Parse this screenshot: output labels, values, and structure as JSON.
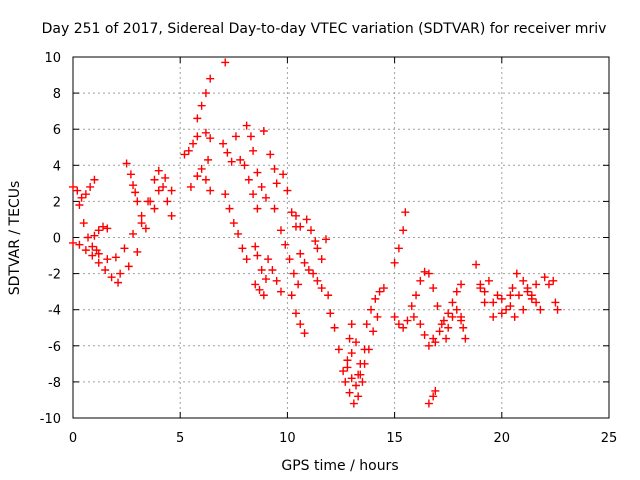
{
  "chart_data": {
    "type": "scatter",
    "title": "Day 251 of 2017, Sidereal Day-to-day VTEC variation (SDTVAR) for receiver mriv",
    "xlabel": "GPS time / hours",
    "ylabel": "SDTVAR / TECUs",
    "xlim": [
      0,
      25
    ],
    "ylim": [
      -10,
      10
    ],
    "xticks": [
      0,
      5,
      10,
      15,
      20,
      25
    ],
    "yticks": [
      -10,
      -8,
      -6,
      -4,
      -2,
      0,
      2,
      4,
      6,
      8,
      10
    ],
    "grid": true,
    "marker": "+",
    "series": [
      {
        "name": "SDTVAR",
        "color": "#ff0000",
        "points": [
          [
            0.0,
            2.8
          ],
          [
            0.2,
            2.6
          ],
          [
            0.4,
            2.2
          ],
          [
            0.6,
            2.4
          ],
          [
            0.8,
            2.8
          ],
          [
            1.0,
            3.2
          ],
          [
            0.0,
            -0.3
          ],
          [
            0.3,
            -0.4
          ],
          [
            0.6,
            -0.7
          ],
          [
            0.9,
            -1.0
          ],
          [
            1.2,
            -1.4
          ],
          [
            1.5,
            -1.8
          ],
          [
            1.8,
            -2.2
          ],
          [
            2.1,
            -2.5
          ],
          [
            0.3,
            1.8
          ],
          [
            0.5,
            0.8
          ],
          [
            0.7,
            0.0
          ],
          [
            0.9,
            -0.5
          ],
          [
            1.1,
            -0.7
          ],
          [
            1.0,
            0.1
          ],
          [
            1.2,
            0.4
          ],
          [
            1.4,
            0.6
          ],
          [
            1.6,
            0.5
          ],
          [
            1.2,
            -0.9
          ],
          [
            1.6,
            -1.2
          ],
          [
            2.0,
            -1.1
          ],
          [
            2.4,
            -0.6
          ],
          [
            2.8,
            0.2
          ],
          [
            3.2,
            1.2
          ],
          [
            3.6,
            2.0
          ],
          [
            4.0,
            2.6
          ],
          [
            4.4,
            2.0
          ],
          [
            4.6,
            1.2
          ],
          [
            2.5,
            4.1
          ],
          [
            2.7,
            3.5
          ],
          [
            2.9,
            2.5
          ],
          [
            2.2,
            -2.0
          ],
          [
            2.6,
            -1.6
          ],
          [
            3.0,
            -0.8
          ],
          [
            3.4,
            0.5
          ],
          [
            3.8,
            1.6
          ],
          [
            4.2,
            2.8
          ],
          [
            3.2,
            0.8
          ],
          [
            3.5,
            2.0
          ],
          [
            3.8,
            3.2
          ],
          [
            4.0,
            3.7
          ],
          [
            4.3,
            3.3
          ],
          [
            4.6,
            2.6
          ],
          [
            2.8,
            2.9
          ],
          [
            3.0,
            2.0
          ],
          [
            5.2,
            4.6
          ],
          [
            5.4,
            4.8
          ],
          [
            5.6,
            5.2
          ],
          [
            5.8,
            5.6
          ],
          [
            6.2,
            5.8
          ],
          [
            6.4,
            5.5
          ],
          [
            5.5,
            2.8
          ],
          [
            5.8,
            3.4
          ],
          [
            6.0,
            3.8
          ],
          [
            6.3,
            4.3
          ],
          [
            5.8,
            6.6
          ],
          [
            6.0,
            7.3
          ],
          [
            6.2,
            8.0
          ],
          [
            6.4,
            8.8
          ],
          [
            6.2,
            3.2
          ],
          [
            6.4,
            2.6
          ],
          [
            7.1,
            9.7
          ],
          [
            7.0,
            5.2
          ],
          [
            7.2,
            4.7
          ],
          [
            7.4,
            4.2
          ],
          [
            7.1,
            2.4
          ],
          [
            7.3,
            1.6
          ],
          [
            7.5,
            0.8
          ],
          [
            7.7,
            0.2
          ],
          [
            7.9,
            -0.6
          ],
          [
            8.1,
            -1.2
          ],
          [
            7.6,
            5.6
          ],
          [
            7.8,
            4.3
          ],
          [
            8.0,
            4.0
          ],
          [
            8.2,
            3.2
          ],
          [
            8.4,
            2.4
          ],
          [
            8.6,
            1.6
          ],
          [
            8.1,
            6.2
          ],
          [
            8.3,
            5.6
          ],
          [
            8.4,
            4.8
          ],
          [
            8.5,
            -0.5
          ],
          [
            8.6,
            -1.0
          ],
          [
            8.8,
            -1.8
          ],
          [
            9.0,
            -2.3
          ],
          [
            8.6,
            3.6
          ],
          [
            8.8,
            2.8
          ],
          [
            9.0,
            2.2
          ],
          [
            9.4,
            1.6
          ],
          [
            8.9,
            5.9
          ],
          [
            9.2,
            4.6
          ],
          [
            9.4,
            3.8
          ],
          [
            9.5,
            3.0
          ],
          [
            8.5,
            -2.6
          ],
          [
            8.7,
            -2.9
          ],
          [
            8.9,
            -3.2
          ],
          [
            9.1,
            -1.2
          ],
          [
            9.3,
            -1.8
          ],
          [
            9.5,
            -2.4
          ],
          [
            9.7,
            -3.0
          ],
          [
            9.8,
            3.5
          ],
          [
            10.0,
            2.6
          ],
          [
            10.2,
            1.4
          ],
          [
            10.4,
            0.6
          ],
          [
            9.7,
            0.4
          ],
          [
            9.9,
            -0.4
          ],
          [
            10.1,
            -1.2
          ],
          [
            10.3,
            -2.0
          ],
          [
            10.5,
            -2.6
          ],
          [
            10.2,
            -3.2
          ],
          [
            10.4,
            -4.2
          ],
          [
            10.6,
            -4.8
          ],
          [
            10.8,
            -5.3
          ],
          [
            10.4,
            1.2
          ],
          [
            10.6,
            0.6
          ],
          [
            10.6,
            -0.9
          ],
          [
            10.8,
            -1.4
          ],
          [
            11.0,
            -1.8
          ],
          [
            10.9,
            1.0
          ],
          [
            11.1,
            0.4
          ],
          [
            11.3,
            -0.2
          ],
          [
            11.2,
            -2.0
          ],
          [
            11.4,
            -2.4
          ],
          [
            11.6,
            -2.8
          ],
          [
            11.4,
            -0.6
          ],
          [
            11.6,
            -1.2
          ],
          [
            11.8,
            -0.1
          ],
          [
            11.9,
            -3.2
          ],
          [
            12.0,
            -4.2
          ],
          [
            12.2,
            -5.0
          ],
          [
            12.4,
            -6.2
          ],
          [
            12.6,
            -7.4
          ],
          [
            12.7,
            -8.0
          ],
          [
            12.9,
            -8.6
          ],
          [
            13.1,
            -9.2
          ],
          [
            13.3,
            -8.8
          ],
          [
            13.5,
            -8.0
          ],
          [
            12.8,
            -7.2
          ],
          [
            13.0,
            -6.4
          ],
          [
            13.2,
            -5.8
          ],
          [
            13.4,
            -7.0
          ],
          [
            13.6,
            -6.2
          ],
          [
            13.3,
            -7.6
          ],
          [
            13.6,
            -7.0
          ],
          [
            13.8,
            -6.2
          ],
          [
            14.0,
            -5.2
          ],
          [
            14.2,
            -4.4
          ],
          [
            13.7,
            -4.8
          ],
          [
            13.9,
            -4.0
          ],
          [
            14.1,
            -3.4
          ],
          [
            14.3,
            -3.0
          ],
          [
            14.5,
            -2.8
          ],
          [
            13.0,
            -7.8
          ],
          [
            13.2,
            -8.2
          ],
          [
            13.4,
            -7.6
          ],
          [
            12.8,
            -6.8
          ],
          [
            12.9,
            -5.6
          ],
          [
            13.0,
            -4.8
          ],
          [
            15.0,
            -4.4
          ],
          [
            15.2,
            -4.8
          ],
          [
            15.4,
            -5.0
          ],
          [
            15.6,
            -4.6
          ],
          [
            15.9,
            -4.4
          ],
          [
            15.0,
            -1.4
          ],
          [
            15.2,
            -0.6
          ],
          [
            15.4,
            0.4
          ],
          [
            15.5,
            1.4
          ],
          [
            15.8,
            -3.8
          ],
          [
            16.0,
            -3.2
          ],
          [
            16.2,
            -2.4
          ],
          [
            16.4,
            -1.9
          ],
          [
            16.2,
            -4.8
          ],
          [
            16.4,
            -5.4
          ],
          [
            16.6,
            -6.0
          ],
          [
            16.8,
            -5.6
          ],
          [
            16.6,
            -2.0
          ],
          [
            16.8,
            -2.8
          ],
          [
            17.0,
            -3.8
          ],
          [
            17.2,
            -4.8
          ],
          [
            17.4,
            -5.6
          ],
          [
            16.6,
            -9.2
          ],
          [
            16.8,
            -8.8
          ],
          [
            16.9,
            -8.5
          ],
          [
            16.9,
            -5.8
          ],
          [
            17.1,
            -5.2
          ],
          [
            17.3,
            -4.6
          ],
          [
            17.5,
            -4.2
          ],
          [
            17.7,
            -3.6
          ],
          [
            17.9,
            -3.0
          ],
          [
            18.1,
            -2.6
          ],
          [
            17.5,
            -5.0
          ],
          [
            17.7,
            -4.4
          ],
          [
            17.9,
            -4.0
          ],
          [
            18.1,
            -4.4
          ],
          [
            18.1,
            -4.6
          ],
          [
            18.2,
            -5.0
          ],
          [
            18.3,
            -5.6
          ],
          [
            18.8,
            -1.5
          ],
          [
            19.0,
            -2.6
          ],
          [
            19.2,
            -3.0
          ],
          [
            19.6,
            -3.6
          ],
          [
            20.0,
            -3.4
          ],
          [
            20.4,
            -3.2
          ],
          [
            19.0,
            -2.8
          ],
          [
            19.4,
            -2.4
          ],
          [
            19.8,
            -3.2
          ],
          [
            20.2,
            -4.0
          ],
          [
            20.6,
            -4.4
          ],
          [
            21.0,
            -4.0
          ],
          [
            21.4,
            -3.4
          ],
          [
            19.2,
            -3.6
          ],
          [
            19.6,
            -4.4
          ],
          [
            20.0,
            -4.2
          ],
          [
            20.4,
            -3.8
          ],
          [
            20.8,
            -3.2
          ],
          [
            20.5,
            -2.8
          ],
          [
            20.7,
            -2.0
          ],
          [
            21.0,
            -2.4
          ],
          [
            21.2,
            -3.0
          ],
          [
            21.2,
            -2.8
          ],
          [
            21.4,
            -3.2
          ],
          [
            21.6,
            -3.6
          ],
          [
            21.8,
            -4.0
          ],
          [
            21.6,
            -2.6
          ],
          [
            22.0,
            -2.2
          ],
          [
            22.2,
            -2.6
          ],
          [
            22.4,
            -2.4
          ],
          [
            22.5,
            -3.6
          ],
          [
            22.6,
            -4.0
          ]
        ]
      }
    ]
  }
}
